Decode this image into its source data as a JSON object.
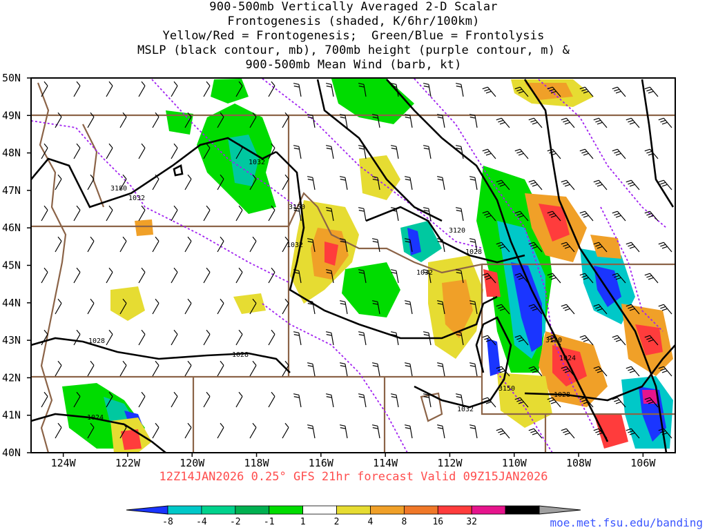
{
  "title": {
    "lines": [
      "900-500mb Vertically Averaged 2-D Scalar",
      "Frontogenesis (shaded, K/6hr/100km)",
      "Yellow/Red = Frontogenesis;  Green/Blue = Frontolysis",
      "MSLP (black contour, mb), 700mb height (purple contour, m) &",
      "900-500mb Mean Wind (barb, kt)"
    ]
  },
  "footer": "12Z14JAN2026 0.25° GFS 21hr forecast Valid 09Z15JAN2026",
  "credit": "moe.met.fsu.edu/banding",
  "map": {
    "lat_labels": [
      "50N",
      "49N",
      "48N",
      "47N",
      "46N",
      "45N",
      "44N",
      "43N",
      "42N",
      "41N",
      "40N"
    ],
    "lon_labels": [
      "124W",
      "122W",
      "120W",
      "118W",
      "116W",
      "114W",
      "112W",
      "110W",
      "108W",
      "106W"
    ],
    "mslp_labels": [
      "1032",
      "1032",
      "1032",
      "1032",
      "1032",
      "1028",
      "1028",
      "1028",
      "1024",
      "1024",
      "1028"
    ],
    "height_labels": [
      "3180",
      "3150",
      "3120",
      "3120",
      "3150"
    ]
  },
  "legend": {
    "ticks": [
      "-8",
      "-4",
      "-2",
      "-1",
      "1",
      "2",
      "4",
      "8",
      "16",
      "32"
    ],
    "colors": [
      "#1a35ff",
      "#00c8c8",
      "#00d28c",
      "#00b050",
      "#00dc00",
      "#ffffff",
      "#e6dc32",
      "#f0a028",
      "#f07828",
      "#ff3c3c",
      "#e6148c",
      "#000000",
      "#a0a0a0"
    ]
  },
  "colors": {
    "border": "#8b6347",
    "height_contour": "#a020f0",
    "mslp_contour": "#000000",
    "footer_text": "#ff4d4d",
    "credit_text": "#3a55ff"
  }
}
